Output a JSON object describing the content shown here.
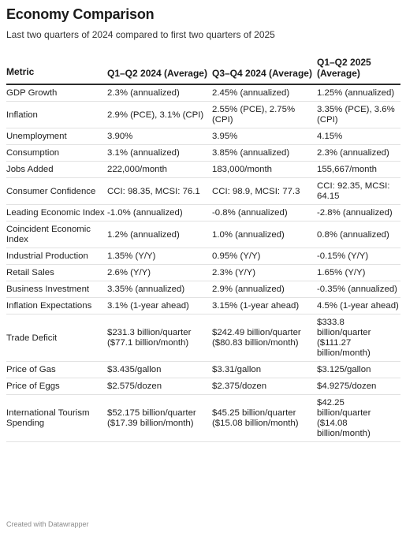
{
  "title": "Economy Comparison",
  "subtitle": "Last two quarters of 2024 compared to first two quarters of 2025",
  "columns": {
    "metric": "Metric",
    "q1q2_2024": "Q1–Q2 2024 (Average)",
    "q3q4_2024": "Q3–Q4 2024 (Average)",
    "q1q2_2025": "Q1–Q2 2025 (Average)"
  },
  "rows": [
    {
      "metric": "GDP Growth",
      "a": "2.3% (annualized)",
      "b": "2.45% (annualized)",
      "c": "1.25% (annualized)"
    },
    {
      "metric": "Inflation",
      "a": "2.9% (PCE), 3.1% (CPI)",
      "b": "2.55% (PCE), 2.75% (CPI)",
      "c": "3.35% (PCE), 3.6% (CPI)"
    },
    {
      "metric": "Unemployment",
      "a": "3.90%",
      "b": "3.95%",
      "c": "4.15%"
    },
    {
      "metric": "Consumption",
      "a": "3.1% (annualized)",
      "b": "3.85% (annualized)",
      "c": "2.3% (annualized)"
    },
    {
      "metric": "Jobs Added",
      "a": "222,000/month",
      "b": "183,000/month",
      "c": "155,667/month"
    },
    {
      "metric": "Consumer Confidence",
      "a": "CCI: 98.35, MCSI: 76.1",
      "b": "CCI: 98.9, MCSI: 77.3",
      "c": "CCI: 92.35, MCSI: 64.15"
    },
    {
      "metric": "Leading Economic Index",
      "a": "-1.0% (annualized)",
      "b": "-0.8% (annualized)",
      "c": "-2.8% (annualized)"
    },
    {
      "metric": "Coincident Economic Index",
      "a": "1.2% (annualized)",
      "b": "1.0% (annualized)",
      "c": "0.8% (annualized)"
    },
    {
      "metric": "Industrial Production",
      "a": "1.35% (Y/Y)",
      "b": "0.95% (Y/Y)",
      "c": "-0.15% (Y/Y)"
    },
    {
      "metric": "Retail Sales",
      "a": "2.6% (Y/Y)",
      "b": "2.3% (Y/Y)",
      "c": "1.65% (Y/Y)"
    },
    {
      "metric": "Business Investment",
      "a": "3.35% (annualized)",
      "b": "2.9% (annualized)",
      "c": "-0.35% (annualized)"
    },
    {
      "metric": "Inflation Expectations",
      "a": "3.1% (1-year ahead)",
      "b": "3.15% (1-year ahead)",
      "c": "4.5% (1-year ahead)"
    },
    {
      "metric": "Trade Deficit",
      "a": "$231.3 billion/quarter ($77.1 billion/month)",
      "b": "$242.49 billion/quarter ($80.83 billion/month)",
      "c": "$333.8 billion/quarter ($111.27 billion/month)"
    },
    {
      "metric": "Price of Gas",
      "a": "$3.435/gallon",
      "b": "$3.31/gallon",
      "c": "$3.125/gallon"
    },
    {
      "metric": "Price of Eggs",
      "a": "$2.575/dozen",
      "b": "$2.375/dozen",
      "c": "$4.9275/dozen"
    },
    {
      "metric": "International Tourism Spending",
      "a": "$52.175 billion/quarter ($17.39 billion/month)",
      "b": "$45.25 billion/quarter ($15.08 billion/month)",
      "c": "$42.25 billion/quarter ($14.08 billion/month)"
    }
  ],
  "footer": "Created with Datawrapper"
}
